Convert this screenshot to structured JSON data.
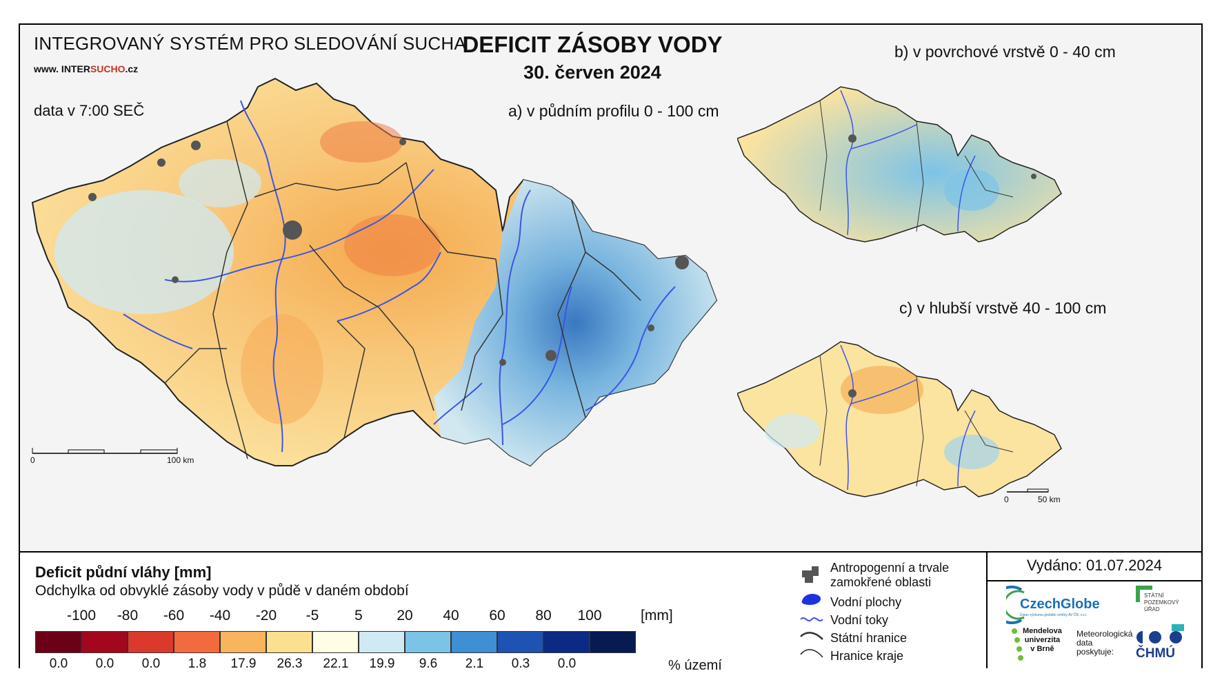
{
  "header": {
    "system_title": "INTEGROVANÝ SYSTÉM PRO SLEDOVÁNÍ SUCHA",
    "website_prefix": "www. INTER",
    "website_accent": "SUCHO",
    "website_suffix": ".cz",
    "data_time": "data v 7:00 SEČ",
    "main_title": "DEFICIT ZÁSOBY VODY",
    "date": "30. červen 2024"
  },
  "maps": {
    "a_label": "a) v půdním profilu 0 - 100 cm",
    "b_label": "b) v povrchové vrstvě 0 - 40 cm",
    "c_label": "c) v hlubší vrstvě 40 - 100 cm",
    "scale_main_start": "0",
    "scale_main_end": "100 km",
    "scale_small_start": "0",
    "scale_small_end": "50 km"
  },
  "legend": {
    "title": "Deficit půdní vláhy  [mm]",
    "subtitle": "Odchylka od obvyklé zásoby vody v půdě v daném období",
    "unit": "[mm]",
    "percent_label": "% území",
    "ticks": [
      "-100",
      "-80",
      "-60",
      "-40",
      "-20",
      "-5",
      "5",
      "20",
      "40",
      "60",
      "80",
      "100"
    ],
    "colors": [
      "#6b0017",
      "#a3071e",
      "#d93a2c",
      "#f26b3f",
      "#f9b45e",
      "#fbe08f",
      "#fffde5",
      "#cfe9f5",
      "#7cc3e8",
      "#3f8fd4",
      "#1e52b3",
      "#0a2a84",
      "#071a52"
    ],
    "percentages": [
      "0.0",
      "0.0",
      "0.0",
      "1.8",
      "17.9",
      "26.3",
      "22.1",
      "19.9",
      "9.6",
      "2.1",
      "0.3",
      "0.0"
    ],
    "symbols": [
      {
        "icon": "urban-area-icon",
        "label_1": "Antropogenní a trvale",
        "label_2": "zamokřené oblasti"
      },
      {
        "icon": "water-body-icon",
        "label_1": "Vodní plochy",
        "label_2": ""
      },
      {
        "icon": "river-icon",
        "label_1": "Vodní toky",
        "label_2": ""
      },
      {
        "icon": "state-border-icon",
        "label_1": "Státní hranice",
        "label_2": ""
      },
      {
        "icon": "region-border-icon",
        "label_1": "Hranice kraje",
        "label_2": ""
      }
    ]
  },
  "footer": {
    "issued": "Vydáno: 01.07.2024",
    "czechglobe": "CzechGlobe",
    "czechglobe_sub": "Ústav výzkumu globální změny AV ČR, v.v.i.",
    "spu_1": "STÁTNÍ",
    "spu_2": "POZEMKOVÝ",
    "spu_3": "ÚŘAD",
    "mendel_1": "Mendelova",
    "mendel_2": "univerzita",
    "mendel_3": "v Brně",
    "chmu_pre_1": "Meteorologická",
    "chmu_pre_2": "data",
    "chmu_pre_3": "poskytuje:",
    "chmu": "ČHMÚ"
  }
}
